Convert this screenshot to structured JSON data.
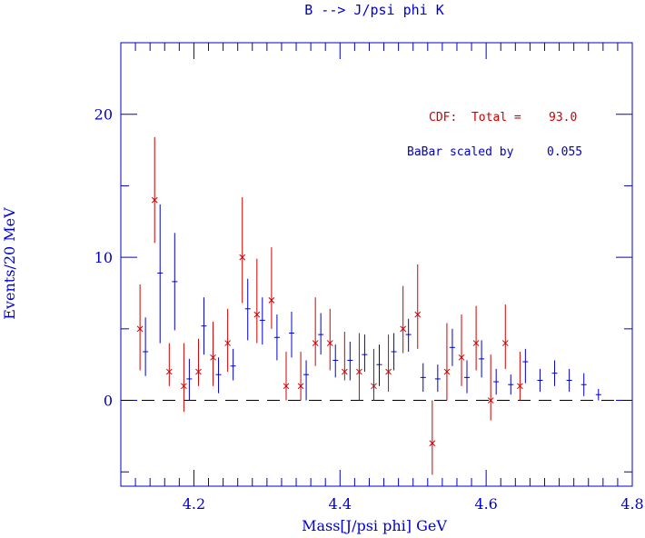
{
  "chart_data": {
    "type": "scatter",
    "title": "B --> J/psi phi K",
    "xlabel": "Mass[J/psi phi] GeV",
    "ylabel": "Events/20 MeV",
    "xlim": [
      4.1,
      4.8
    ],
    "ylim": [
      -6,
      25
    ],
    "x_ticks": [
      4.2,
      4.4,
      4.6,
      4.8
    ],
    "x_tick_labels": [
      "4.2",
      "4.4",
      "4.6",
      "4.8"
    ],
    "y_ticks": [
      0,
      10,
      20
    ],
    "y_tick_labels": [
      "0",
      "10",
      "20"
    ],
    "zero_line": "dashed",
    "annotations": {
      "cdf_label": "CDF:  Total =",
      "cdf_total": "93.0",
      "babar_label": "BaBar scaled by",
      "babar_scale": "0.055"
    },
    "series": [
      {
        "name": "CDF",
        "color": "#cc0000",
        "marker": "x",
        "points": [
          {
            "x": 4.13,
            "y": 5,
            "lo": 2.1,
            "hi": 8.1
          },
          {
            "x": 4.15,
            "y": 14,
            "lo": 11.0,
            "hi": 18.4
          },
          {
            "x": 4.17,
            "y": 2,
            "lo": 1.0,
            "hi": 4.0
          },
          {
            "x": 4.19,
            "y": 1,
            "lo": -0.8,
            "hi": 4.0
          },
          {
            "x": 4.21,
            "y": 2,
            "lo": 1.0,
            "hi": 4.3
          },
          {
            "x": 4.23,
            "y": 3,
            "lo": 1.0,
            "hi": 5.5
          },
          {
            "x": 4.25,
            "y": 4,
            "lo": 2.0,
            "hi": 6.4
          },
          {
            "x": 4.27,
            "y": 10,
            "lo": 6.8,
            "hi": 14.2
          },
          {
            "x": 4.29,
            "y": 6,
            "lo": 4.0,
            "hi": 9.9
          },
          {
            "x": 4.31,
            "y": 7,
            "lo": 5.0,
            "hi": 10.7
          },
          {
            "x": 4.33,
            "y": 1,
            "lo": 0.0,
            "hi": 3.4
          },
          {
            "x": 4.35,
            "y": 1,
            "lo": 0.0,
            "hi": 3.4
          },
          {
            "x": 4.37,
            "y": 4,
            "lo": 2.4,
            "hi": 7.2
          },
          {
            "x": 4.39,
            "y": 4,
            "lo": 2.1,
            "hi": 6.4
          },
          {
            "x": 4.41,
            "y": 2,
            "lo": 1.4,
            "hi": 4.8
          },
          {
            "x": 4.43,
            "y": 2,
            "lo": 0.0,
            "hi": 4.7
          },
          {
            "x": 4.45,
            "y": 1,
            "lo": 0.0,
            "hi": 3.6
          },
          {
            "x": 4.47,
            "y": 2,
            "lo": 0.6,
            "hi": 4.6
          },
          {
            "x": 4.49,
            "y": 5,
            "lo": 3.3,
            "hi": 8.0
          },
          {
            "x": 4.51,
            "y": 6,
            "lo": 3.6,
            "hi": 9.5
          },
          {
            "x": 4.53,
            "y": -3,
            "lo": -5.2,
            "hi": 0.0
          },
          {
            "x": 4.55,
            "y": 2,
            "lo": 0.0,
            "hi": 5.4
          },
          {
            "x": 4.57,
            "y": 3,
            "lo": 1.0,
            "hi": 6.0
          },
          {
            "x": 4.59,
            "y": 4,
            "lo": 2.1,
            "hi": 6.6
          },
          {
            "x": 4.61,
            "y": 0,
            "lo": -1.4,
            "hi": 3.2
          },
          {
            "x": 4.63,
            "y": 4,
            "lo": 2.2,
            "hi": 6.7
          },
          {
            "x": 4.65,
            "y": 1,
            "lo": 0.0,
            "hi": 3.4
          }
        ]
      },
      {
        "name": "BaBar",
        "color": "#0000cc",
        "marker": "tick",
        "points": [
          {
            "x": 4.13,
            "y": 3.4,
            "lo": 1.7,
            "hi": 5.8
          },
          {
            "x": 4.15,
            "y": 8.9,
            "lo": 4.0,
            "hi": 13.7
          },
          {
            "x": 4.17,
            "y": 8.3,
            "lo": 4.9,
            "hi": 11.7
          },
          {
            "x": 4.19,
            "y": 1.5,
            "lo": 0.0,
            "hi": 2.9
          },
          {
            "x": 4.21,
            "y": 5.2,
            "lo": 3.2,
            "hi": 7.2
          },
          {
            "x": 4.23,
            "y": 1.8,
            "lo": 0.5,
            "hi": 3.0
          },
          {
            "x": 4.25,
            "y": 2.4,
            "lo": 1.4,
            "hi": 3.6
          },
          {
            "x": 4.27,
            "y": 6.4,
            "lo": 4.2,
            "hi": 8.5
          },
          {
            "x": 4.29,
            "y": 5.6,
            "lo": 3.9,
            "hi": 7.2
          },
          {
            "x": 4.31,
            "y": 4.4,
            "lo": 2.8,
            "hi": 6.0
          },
          {
            "x": 4.33,
            "y": 4.7,
            "lo": 3.0,
            "hi": 6.2
          },
          {
            "x": 4.35,
            "y": 1.8,
            "lo": 0.0,
            "hi": 2.8
          },
          {
            "x": 4.37,
            "y": 4.6,
            "lo": 3.2,
            "hi": 6.1
          },
          {
            "x": 4.39,
            "y": 2.8,
            "lo": 1.6,
            "hi": 3.9
          },
          {
            "x": 4.41,
            "y": 2.8,
            "lo": 1.4,
            "hi": 4.1
          },
          {
            "x": 4.43,
            "y": 3.2,
            "lo": 2.0,
            "hi": 4.6
          },
          {
            "x": 4.45,
            "y": 2.5,
            "lo": 1.0,
            "hi": 3.9
          },
          {
            "x": 4.47,
            "y": 3.4,
            "lo": 2.1,
            "hi": 4.7
          },
          {
            "x": 4.49,
            "y": 4.6,
            "lo": 3.4,
            "hi": 5.7
          },
          {
            "x": 4.51,
            "y": 1.6,
            "lo": 0.6,
            "hi": 2.6
          },
          {
            "x": 4.53,
            "y": 1.5,
            "lo": 0.6,
            "hi": 2.5
          },
          {
            "x": 4.55,
            "y": 3.7,
            "lo": 2.4,
            "hi": 5.0
          },
          {
            "x": 4.57,
            "y": 1.6,
            "lo": 0.5,
            "hi": 2.8
          },
          {
            "x": 4.59,
            "y": 2.9,
            "lo": 1.6,
            "hi": 4.2
          },
          {
            "x": 4.61,
            "y": 1.3,
            "lo": 0.4,
            "hi": 2.2
          },
          {
            "x": 4.63,
            "y": 1.1,
            "lo": 0.4,
            "hi": 1.8
          },
          {
            "x": 4.65,
            "y": 2.7,
            "lo": 1.2,
            "hi": 3.6
          },
          {
            "x": 4.67,
            "y": 1.4,
            "lo": 0.6,
            "hi": 2.2
          },
          {
            "x": 4.69,
            "y": 1.9,
            "lo": 1.0,
            "hi": 2.8
          },
          {
            "x": 4.71,
            "y": 1.4,
            "lo": 0.6,
            "hi": 2.2
          },
          {
            "x": 4.73,
            "y": 1.1,
            "lo": 0.3,
            "hi": 1.9
          },
          {
            "x": 4.75,
            "y": 0.4,
            "lo": 0.0,
            "hi": 0.8
          }
        ]
      }
    ]
  }
}
